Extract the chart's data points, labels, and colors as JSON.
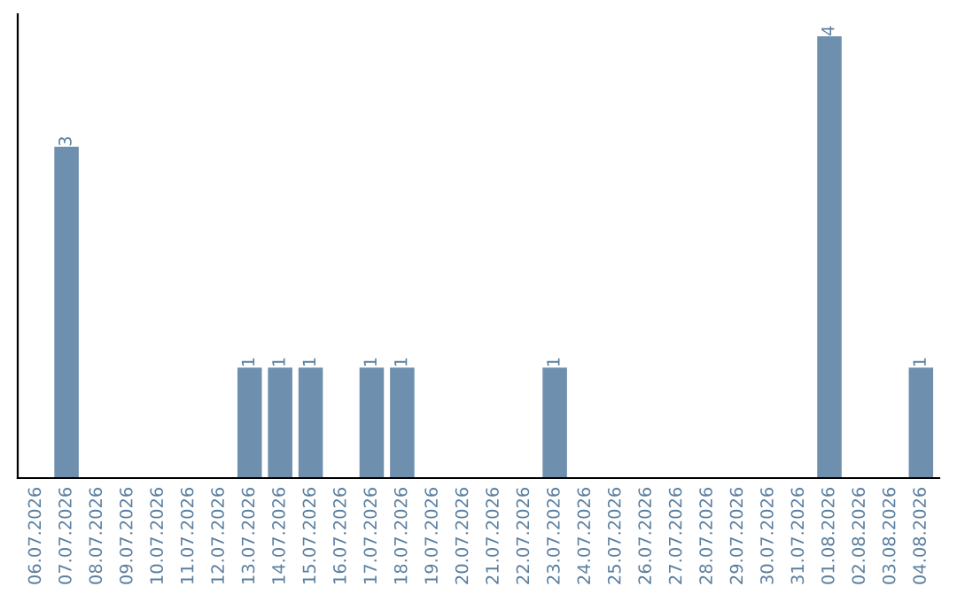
{
  "chart_data": {
    "type": "bar",
    "categories": [
      "06.07.2026",
      "07.07.2026",
      "08.07.2026",
      "09.07.2026",
      "10.07.2026",
      "11.07.2026",
      "12.07.2026",
      "13.07.2026",
      "14.07.2026",
      "15.07.2026",
      "16.07.2026",
      "17.07.2026",
      "18.07.2026",
      "19.07.2026",
      "20.07.2026",
      "21.07.2026",
      "22.07.2026",
      "23.07.2026",
      "24.07.2026",
      "25.07.2026",
      "26.07.2026",
      "27.07.2026",
      "28.07.2026",
      "29.07.2026",
      "30.07.2026",
      "31.07.2026",
      "01.08.2026",
      "02.08.2026",
      "03.08.2026",
      "04.08.2026"
    ],
    "values": [
      null,
      3,
      null,
      null,
      null,
      null,
      null,
      1,
      1,
      1,
      null,
      1,
      1,
      null,
      null,
      null,
      null,
      1,
      null,
      null,
      null,
      null,
      null,
      null,
      null,
      null,
      4,
      null,
      null,
      1
    ],
    "color": "#6e8fae",
    "data_labels": true,
    "grid": false,
    "legend": false
  }
}
